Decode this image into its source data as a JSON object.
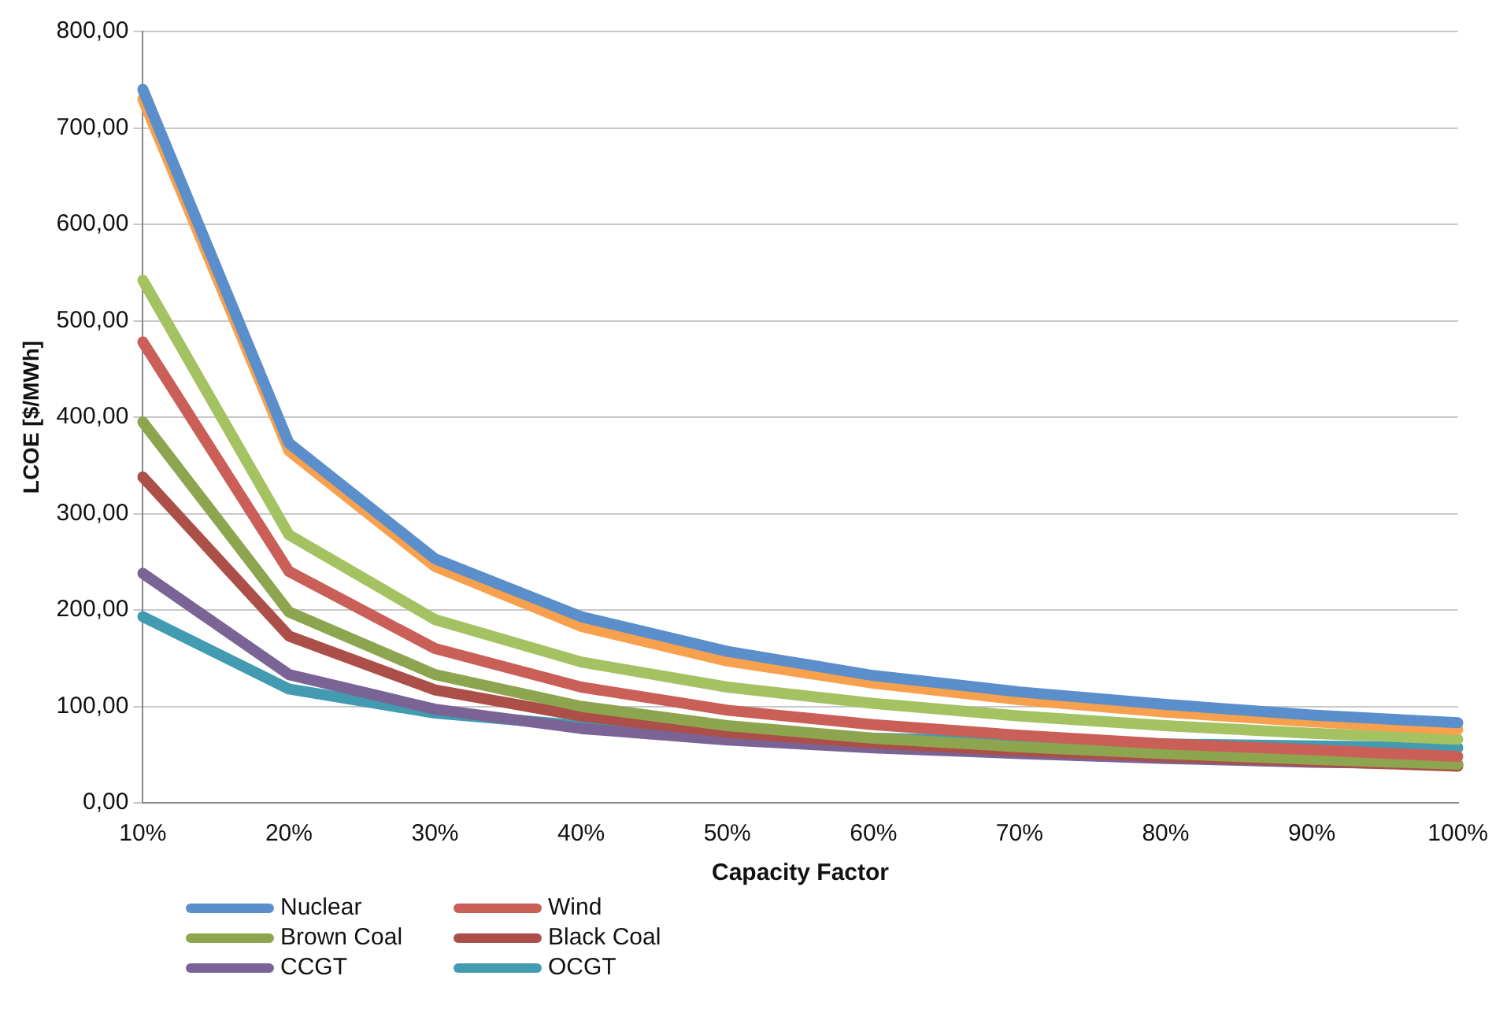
{
  "chart_data": {
    "type": "line",
    "xlabel": "Capacity Factor",
    "ylabel": "LCOE [$/MWh]",
    "categories": [
      "10%",
      "20%",
      "30%",
      "40%",
      "50%",
      "60%",
      "70%",
      "80%",
      "90%",
      "100%"
    ],
    "series": [
      {
        "name": "Nuclear",
        "color": "#5b8fcb",
        "values": [
          740,
          373,
          253,
          193,
          157,
          132,
          115,
          102,
          91,
          83
        ]
      },
      {
        "color": "#f7a04d",
        "values": [
          730,
          365,
          245,
          183,
          147,
          124,
          107,
          94,
          84,
          76
        ]
      },
      {
        "color": "#a5c262",
        "values": [
          542,
          278,
          190,
          146,
          120,
          103,
          90,
          80,
          72,
          66
        ]
      },
      {
        "name": "Wind",
        "color": "#ca5f58",
        "values": [
          478,
          240,
          160,
          120,
          96,
          81,
          70,
          61,
          55,
          48
        ]
      },
      {
        "name": "Brown Coal",
        "color": "#8ea550",
        "values": [
          395,
          198,
          133,
          100,
          80,
          67,
          58,
          51,
          45,
          40
        ]
      },
      {
        "name": "Black Coal",
        "color": "#ac4f49",
        "values": [
          338,
          173,
          117,
          90,
          73,
          62,
          54,
          48,
          43,
          38
        ]
      },
      {
        "name": "CCGT",
        "color": "#7a6496",
        "values": [
          238,
          133,
          97,
          77,
          65,
          57,
          51,
          46,
          42,
          40
        ]
      },
      {
        "name": "OCGT",
        "color": "#429bb0",
        "values": [
          193,
          118,
          93,
          80,
          73,
          67,
          64,
          61,
          59,
          57
        ]
      }
    ],
    "ylim": [
      0,
      800
    ],
    "yticks": [
      {
        "value": 0,
        "label": "0,00"
      },
      {
        "value": 100,
        "label": "100,00"
      },
      {
        "value": 200,
        "label": "200,00"
      },
      {
        "value": 300,
        "label": "300,00"
      },
      {
        "value": 400,
        "label": "400,00"
      },
      {
        "value": 500,
        "label": "500,00"
      },
      {
        "value": 600,
        "label": "600,00"
      },
      {
        "value": 700,
        "label": "700,00"
      },
      {
        "value": 800,
        "label": "800,00"
      }
    ],
    "grid": "y",
    "legend": "bottom left",
    "marker": "none",
    "line_style": "solid"
  }
}
